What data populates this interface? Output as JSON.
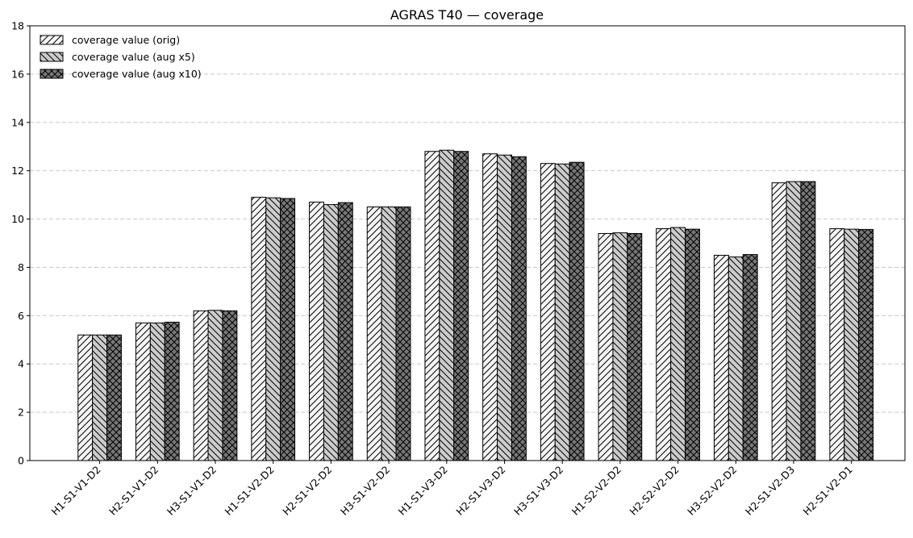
{
  "chart_data": {
    "type": "bar",
    "title": "AGRAS T40 — coverage",
    "xlabel": "",
    "ylabel": "",
    "ylim": [
      0,
      18
    ],
    "yticks": [
      0,
      2,
      4,
      6,
      8,
      10,
      12,
      14,
      16,
      18
    ],
    "grid": "y dashed",
    "legend_position": "top-left",
    "categories": [
      "H1-S1-V1-D2",
      "H2-S1-V1-D2",
      "H3-S1-V1-D2",
      "H1-S1-V2-D2",
      "H2-S1-V2-D2",
      "H3-S1-V2-D2",
      "H1-S1-V3-D2",
      "H2-S1-V3-D2",
      "H3-S1-V3-D2",
      "H1-S2-V2-D2",
      "H2-S2-V2-D2",
      "H3-S2-V2-D2",
      "H2-S1-V2-D3",
      "H2-S1-V2-D1"
    ],
    "series": [
      {
        "name": "coverage value (orig)",
        "color": "#f5f5f5",
        "hatch": "forward-diagonal",
        "values": [
          5.2,
          5.7,
          6.2,
          10.9,
          10.7,
          10.5,
          12.8,
          12.7,
          12.3,
          9.4,
          9.6,
          8.5,
          11.5,
          9.6
        ]
      },
      {
        "name": "coverage value (aug x5)",
        "color": "#cccccc",
        "hatch": "back-diagonal",
        "values": [
          5.2,
          5.7,
          6.22,
          10.88,
          10.6,
          10.5,
          12.85,
          12.65,
          12.28,
          9.43,
          9.65,
          8.43,
          11.55,
          9.58
        ]
      },
      {
        "name": "coverage value (aug x10)",
        "color": "#777777",
        "hatch": "crosshatch",
        "values": [
          5.2,
          5.73,
          6.2,
          10.85,
          10.68,
          10.5,
          12.8,
          12.58,
          12.35,
          9.4,
          9.58,
          8.53,
          11.55,
          9.57
        ]
      }
    ]
  }
}
